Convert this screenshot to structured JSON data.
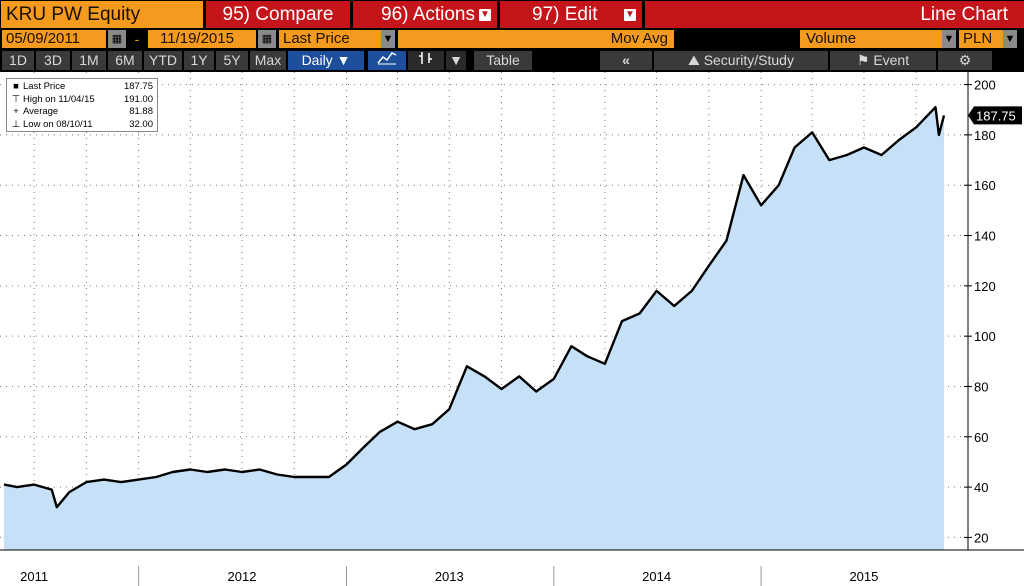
{
  "header": {
    "ticker": "KRU PW Equity",
    "compare": "95) Compare",
    "actions": "96) Actions",
    "edit": "97) Edit",
    "title": "Line Chart"
  },
  "toolbar": {
    "start_date": "05/09/2011",
    "dash": "-",
    "end_date": "11/19/2015",
    "field": "Last Price",
    "mov_avg": "Mov Avg",
    "volume": "Volume",
    "currency": "PLN"
  },
  "periods": [
    "1D",
    "3D",
    "1M",
    "6M",
    "YTD",
    "1Y",
    "5Y",
    "Max"
  ],
  "frequency": "Daily",
  "table_label": "Table",
  "back_label": "«",
  "security_study": "Security/Study",
  "event": "Event",
  "legend": {
    "items": [
      {
        "name": "Last Price",
        "value": "187.75"
      },
      {
        "name": "High on 11/04/15",
        "value": "191.00"
      },
      {
        "name": "Average",
        "value": "81.88"
      },
      {
        "name": "Low on 08/10/11",
        "value": "32.00"
      }
    ]
  },
  "colors": {
    "header_red": "#c4151a",
    "field_orange": "#f39a1f",
    "area_fill": "#c6e1f7",
    "line": "#000000",
    "badge_bg": "#000000"
  },
  "chart_data": {
    "type": "area",
    "title": "",
    "ylim": [
      15,
      205
    ],
    "yticks": [
      20,
      40,
      60,
      80,
      100,
      120,
      140,
      160,
      180,
      200
    ],
    "grid": true,
    "last_price_label": "187.75",
    "x_labels": [
      "2011",
      "2012",
      "2013",
      "2014",
      "2015"
    ],
    "x_label_dates": [
      "2011-07-01",
      "2012-07-01",
      "2013-07-01",
      "2014-07-01",
      "2015-07-01"
    ],
    "x_start": "2011-05-09",
    "x_end": "2015-11-19",
    "series": [
      {
        "name": "Last Price",
        "x": [
          "2011-05-09",
          "2011-06-01",
          "2011-07-01",
          "2011-08-01",
          "2011-08-10",
          "2011-09-01",
          "2011-10-01",
          "2011-11-01",
          "2011-12-01",
          "2012-01-01",
          "2012-02-01",
          "2012-03-01",
          "2012-04-01",
          "2012-05-01",
          "2012-06-01",
          "2012-07-01",
          "2012-08-01",
          "2012-09-01",
          "2012-10-01",
          "2012-11-01",
          "2012-12-01",
          "2013-01-01",
          "2013-02-01",
          "2013-03-01",
          "2013-04-01",
          "2013-05-01",
          "2013-06-01",
          "2013-07-01",
          "2013-08-01",
          "2013-09-01",
          "2013-10-01",
          "2013-11-01",
          "2013-12-01",
          "2014-01-01",
          "2014-02-01",
          "2014-03-01",
          "2014-04-01",
          "2014-05-01",
          "2014-06-01",
          "2014-07-01",
          "2014-08-01",
          "2014-09-01",
          "2014-10-01",
          "2014-11-01",
          "2014-12-01",
          "2015-01-01",
          "2015-02-01",
          "2015-03-01",
          "2015-04-01",
          "2015-05-01",
          "2015-06-01",
          "2015-07-01",
          "2015-08-01",
          "2015-09-01",
          "2015-10-01",
          "2015-11-04",
          "2015-11-10",
          "2015-11-19"
        ],
        "y": [
          41,
          40,
          41,
          39,
          32,
          38,
          42,
          43,
          42,
          43,
          44,
          46,
          47,
          46,
          47,
          46,
          47,
          45,
          44,
          44,
          44,
          49,
          56,
          62,
          66,
          63,
          65,
          71,
          88,
          84,
          79,
          84,
          78,
          83,
          96,
          92,
          89,
          106,
          109,
          118,
          112,
          118,
          128,
          138,
          164,
          152,
          160,
          175,
          181,
          170,
          172,
          175,
          172,
          178,
          183,
          191,
          180,
          187.75
        ]
      }
    ]
  }
}
